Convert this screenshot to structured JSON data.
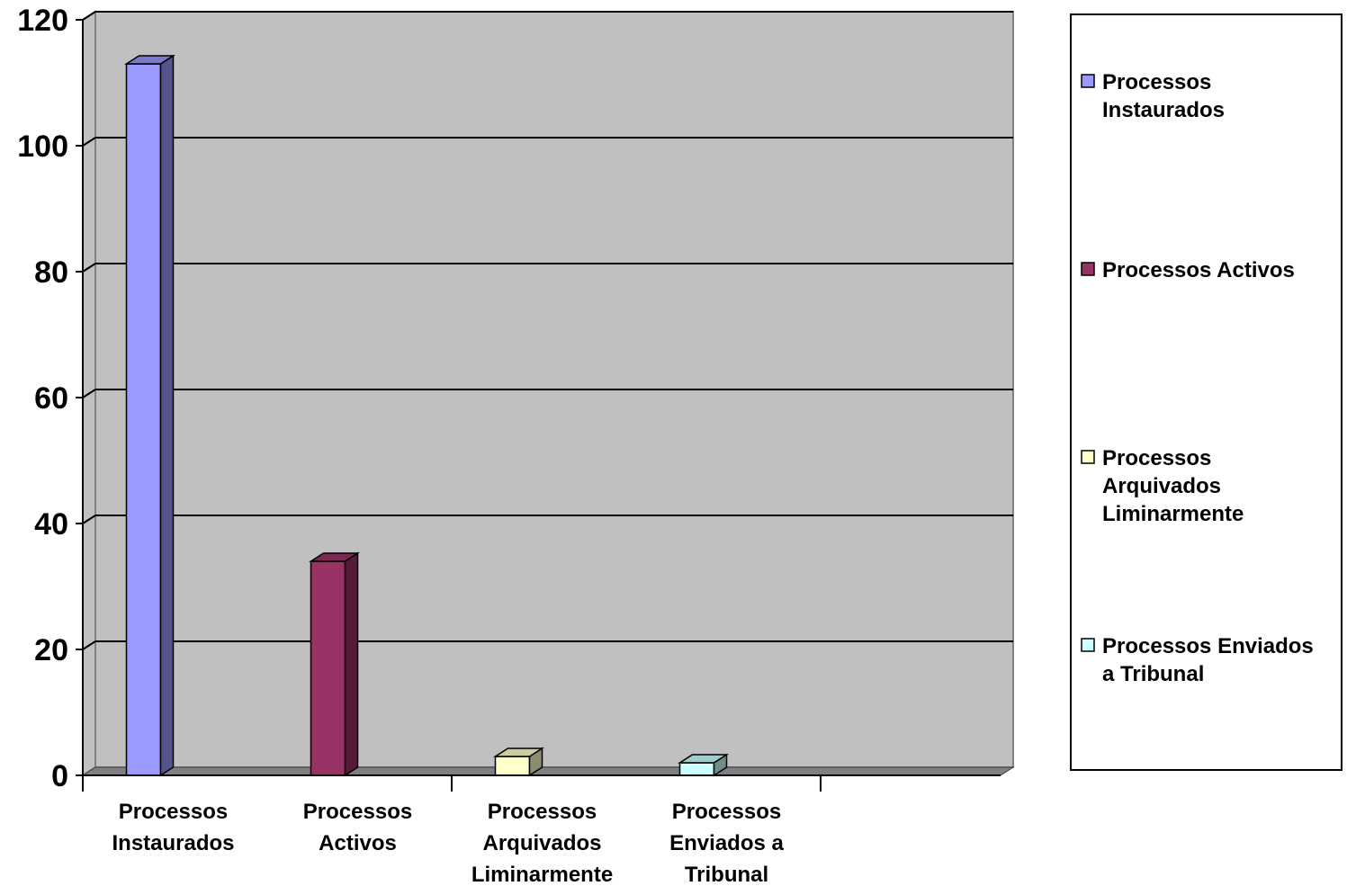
{
  "chart_data": {
    "type": "bar",
    "categories": [
      [
        "Processos",
        "Instaurados"
      ],
      [
        "Processos",
        "Activos"
      ],
      [
        "Processos",
        "Arquivados",
        "Liminarmente"
      ],
      [
        "Processos",
        "Enviados a",
        "Tribunal"
      ]
    ],
    "values": [
      113,
      34,
      3,
      2
    ],
    "colors": [
      "#9999ff",
      "#993366",
      "#ffffcc",
      "#ccffff"
    ],
    "ylim": [
      0,
      120
    ],
    "yticks": [
      0,
      20,
      40,
      60,
      80,
      100,
      120
    ],
    "grid": true,
    "legend_position": "right",
    "legend": [
      {
        "lines": [
          "Processos",
          "Instaurados"
        ],
        "color": "#9999ff"
      },
      {
        "lines": [
          "Processos Activos"
        ],
        "color": "#993366"
      },
      {
        "lines": [
          "Processos",
          "Arquivados",
          "Liminarmente"
        ],
        "color": "#ffffcc"
      },
      {
        "lines": [
          "Processos Enviados",
          "a Tribunal"
        ],
        "color": "#ccffff"
      }
    ],
    "plot_background": "#c0c0c0",
    "floor_color": "#808080"
  }
}
